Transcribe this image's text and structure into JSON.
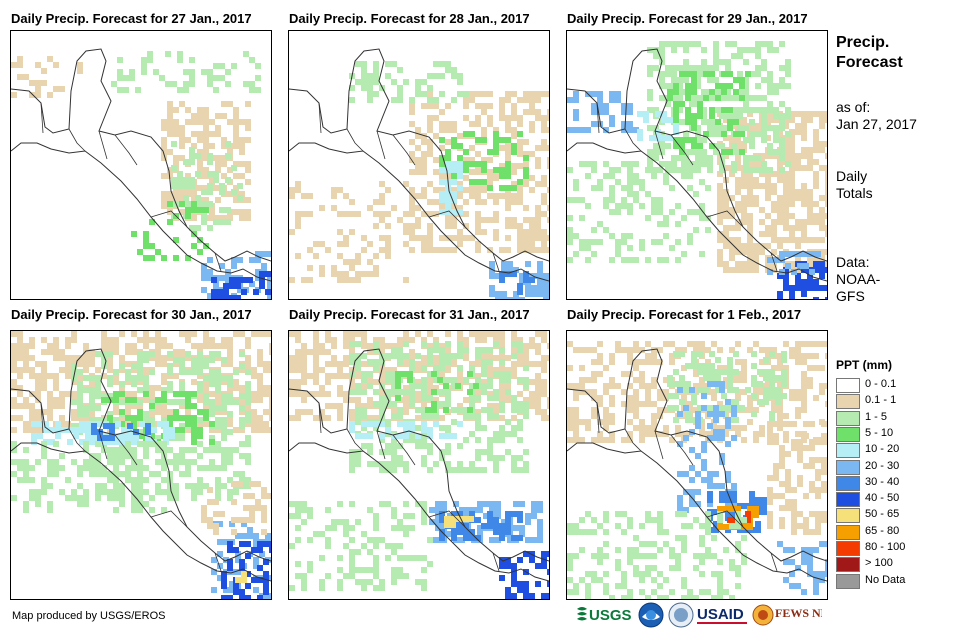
{
  "panels": [
    {
      "title": "Daily Precip. Forecast for 27 Jan., 2017"
    },
    {
      "title": "Daily Precip. Forecast for 28 Jan., 2017"
    },
    {
      "title": "Daily Precip. Forecast for 29 Jan., 2017"
    },
    {
      "title": "Daily Precip. Forecast for 30 Jan., 2017"
    },
    {
      "title": "Daily Precip. Forecast for 31 Jan., 2017"
    },
    {
      "title": "Daily Precip. Forecast for 1 Feb., 2017"
    }
  ],
  "side": {
    "title_line1": "Precip.",
    "title_line2": "Forecast",
    "asof_line1": "as of:",
    "asof_line2": "Jan 27, 2017",
    "daily_line1": "Daily",
    "daily_line2": "Totals",
    "data_line1": "Data:",
    "data_line2": "NOAA-",
    "data_line3": "GFS"
  },
  "legend": {
    "title": "PPT (mm)",
    "items": [
      {
        "label": "0 - 0.1",
        "color": "#ffffff"
      },
      {
        "label": "0.1 - 1",
        "color": "#e8d5b0"
      },
      {
        "label": "1 - 5",
        "color": "#b5ebb0"
      },
      {
        "label": "5 - 10",
        "color": "#6fe06a"
      },
      {
        "label": "10 - 20",
        "color": "#b5eef5"
      },
      {
        "label": "20 - 30",
        "color": "#7bb8f2"
      },
      {
        "label": "30 - 40",
        "color": "#3f88e8"
      },
      {
        "label": "40 - 50",
        "color": "#1e4fe0"
      },
      {
        "label": "50 - 65",
        "color": "#f5e07a"
      },
      {
        "label": "65 - 80",
        "color": "#f5a000"
      },
      {
        "label": "80 - 100",
        "color": "#f53c00"
      },
      {
        "label": "> 100",
        "color": "#a01818"
      },
      {
        "label": "No Data",
        "color": "#999999"
      }
    ]
  },
  "credit": "Map produced by USGS/EROS",
  "logos": {
    "usgs": "USGS",
    "usaid": "USAID",
    "fewsnet": "FEWS NET"
  }
}
